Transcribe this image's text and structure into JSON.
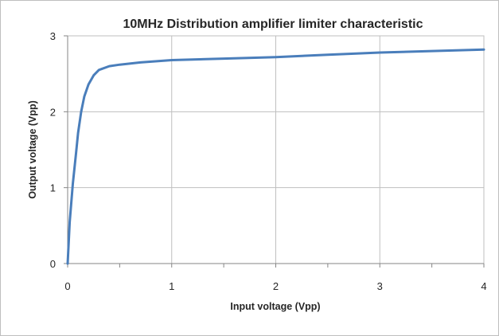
{
  "chart_data": {
    "type": "line",
    "title": "10MHz Distribution amplifier limiter characteristic",
    "xlabel": "Input voltage (Vpp)",
    "ylabel": "Output voltage (Vpp)",
    "xlim": [
      0,
      4
    ],
    "ylim": [
      0,
      3
    ],
    "x_ticks": [
      "0",
      "1",
      "2",
      "3",
      "4"
    ],
    "y_ticks": [
      "0",
      "1",
      "2",
      "3"
    ],
    "grid": true,
    "legend": "none",
    "series": [
      {
        "color": "#4a7ebb",
        "x": [
          0,
          0.02,
          0.05,
          0.08,
          0.1,
          0.13,
          0.16,
          0.2,
          0.25,
          0.3,
          0.4,
          0.5,
          0.7,
          1.0,
          1.5,
          2.0,
          2.5,
          3.0,
          3.5,
          4.0
        ],
        "y": [
          0,
          0.55,
          1.05,
          1.45,
          1.72,
          2.0,
          2.2,
          2.36,
          2.48,
          2.55,
          2.6,
          2.62,
          2.65,
          2.68,
          2.7,
          2.72,
          2.75,
          2.78,
          2.8,
          2.82
        ]
      }
    ]
  }
}
